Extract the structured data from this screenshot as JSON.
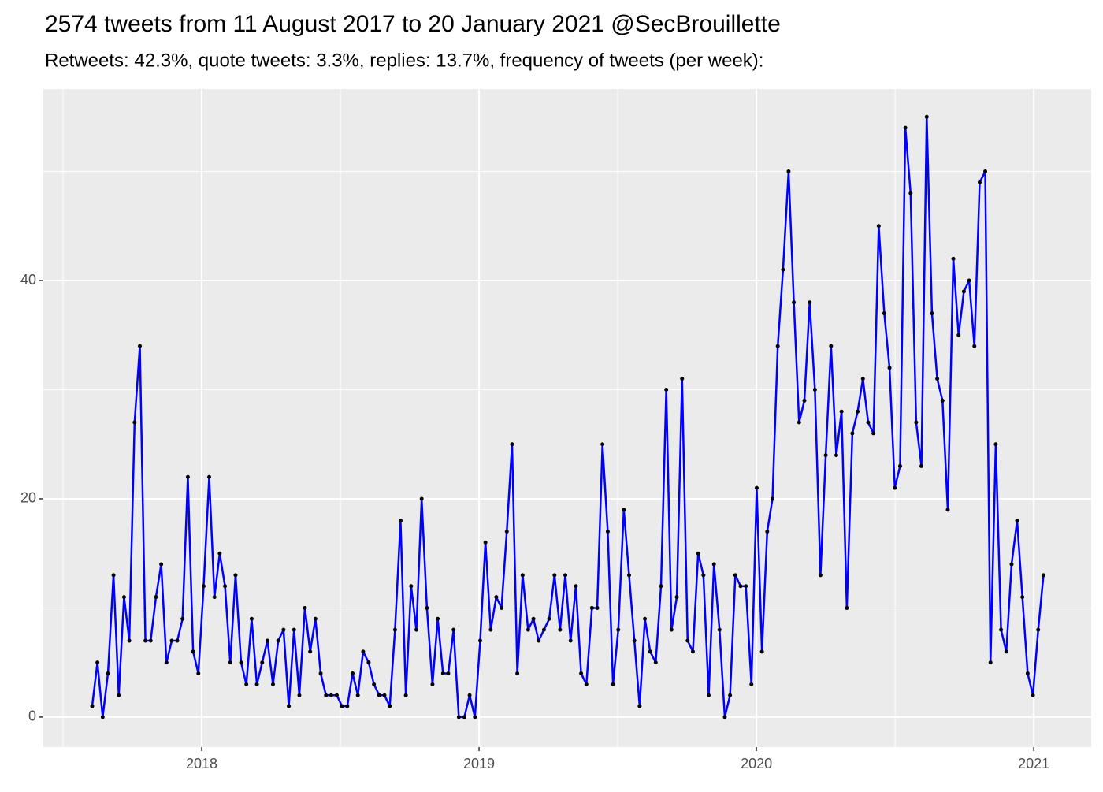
{
  "chart_data": {
    "type": "line",
    "title": "2574 tweets from 11 August 2017 to 20 January 2021 @SecBrouillette",
    "subtitle": "Retweets: 42.3%, quote tweets: 3.3%, replies: 13.7%, frequency of tweets (per week):",
    "x": [
      2017.605,
      2017.624,
      2017.643,
      2017.662,
      2017.682,
      2017.701,
      2017.72,
      2017.739,
      2017.758,
      2017.777,
      2017.797,
      2017.816,
      2017.835,
      2017.854,
      2017.873,
      2017.892,
      2017.912,
      2017.931,
      2017.95,
      2017.969,
      2017.988,
      2018.007,
      2018.027,
      2018.046,
      2018.065,
      2018.084,
      2018.103,
      2018.122,
      2018.142,
      2018.161,
      2018.18,
      2018.199,
      2018.218,
      2018.237,
      2018.257,
      2018.276,
      2018.295,
      2018.314,
      2018.333,
      2018.352,
      2018.372,
      2018.391,
      2018.41,
      2018.429,
      2018.448,
      2018.467,
      2018.487,
      2018.506,
      2018.525,
      2018.544,
      2018.563,
      2018.582,
      2018.602,
      2018.621,
      2018.64,
      2018.659,
      2018.678,
      2018.697,
      2018.717,
      2018.736,
      2018.755,
      2018.774,
      2018.793,
      2018.812,
      2018.832,
      2018.851,
      2018.87,
      2018.889,
      2018.908,
      2018.927,
      2018.947,
      2018.966,
      2018.985,
      2019.004,
      2019.023,
      2019.042,
      2019.062,
      2019.081,
      2019.1,
      2019.119,
      2019.138,
      2019.157,
      2019.177,
      2019.196,
      2019.215,
      2019.234,
      2019.253,
      2019.272,
      2019.292,
      2019.311,
      2019.33,
      2019.349,
      2019.368,
      2019.387,
      2019.407,
      2019.426,
      2019.445,
      2019.464,
      2019.483,
      2019.502,
      2019.522,
      2019.541,
      2019.56,
      2019.579,
      2019.598,
      2019.617,
      2019.637,
      2019.656,
      2019.675,
      2019.694,
      2019.713,
      2019.732,
      2019.752,
      2019.771,
      2019.79,
      2019.809,
      2019.828,
      2019.847,
      2019.867,
      2019.886,
      2019.905,
      2019.924,
      2019.943,
      2019.962,
      2019.982,
      2020.001,
      2020.02,
      2020.039,
      2020.058,
      2020.077,
      2020.096,
      2020.116,
      2020.135,
      2020.154,
      2020.173,
      2020.192,
      2020.211,
      2020.231,
      2020.25,
      2020.269,
      2020.288,
      2020.307,
      2020.326,
      2020.346,
      2020.365,
      2020.384,
      2020.403,
      2020.422,
      2020.441,
      2020.461,
      2020.48,
      2020.499,
      2020.518,
      2020.537,
      2020.556,
      2020.576,
      2020.595,
      2020.614,
      2020.633,
      2020.652,
      2020.671,
      2020.69,
      2020.71,
      2020.729,
      2020.748,
      2020.767,
      2020.786,
      2020.805,
      2020.825,
      2020.844,
      2020.863,
      2020.882,
      2020.901,
      2020.92,
      2020.94,
      2020.959,
      2020.978,
      2020.997,
      2021.016,
      2021.035
    ],
    "values": [
      1,
      5,
      0,
      4,
      13,
      2,
      11,
      7,
      27,
      34,
      7,
      7,
      11,
      14,
      5,
      7,
      7,
      9,
      22,
      6,
      4,
      12,
      22,
      11,
      15,
      12,
      5,
      13,
      5,
      3,
      9,
      3,
      5,
      7,
      3,
      7,
      8,
      1,
      8,
      2,
      10,
      6,
      9,
      4,
      2,
      2,
      2,
      1,
      1,
      4,
      2,
      6,
      5,
      3,
      2,
      2,
      1,
      8,
      18,
      2,
      12,
      8,
      20,
      10,
      3,
      9,
      4,
      4,
      8,
      0,
      0,
      2,
      0,
      7,
      16,
      8,
      11,
      10,
      17,
      25,
      4,
      13,
      8,
      9,
      7,
      8,
      9,
      13,
      8,
      13,
      7,
      12,
      4,
      3,
      10,
      10,
      25,
      17,
      3,
      8,
      19,
      13,
      7,
      1,
      9,
      6,
      5,
      12,
      30,
      8,
      11,
      31,
      7,
      6,
      15,
      13,
      2,
      14,
      8,
      0,
      2,
      13,
      12,
      12,
      3,
      21,
      6,
      17,
      20,
      34,
      41,
      50,
      38,
      27,
      29,
      38,
      30,
      13,
      24,
      34,
      24,
      28,
      10,
      26,
      28,
      31,
      27,
      26,
      45,
      37,
      32,
      21,
      23,
      54,
      48,
      27,
      23,
      55,
      37,
      31,
      29,
      19,
      42,
      35,
      39,
      40,
      34,
      49,
      50,
      5,
      25,
      8,
      6,
      14,
      18,
      11,
      4,
      2,
      8,
      13
    ],
    "color": "#0000ff",
    "point_color": "#000000",
    "xlim": [
      2017.429,
      2021.207
    ],
    "xticks": [
      2018,
      2019,
      2020,
      2021
    ],
    "ylim": [
      -2.75,
      57.55
    ],
    "yticks": [
      0,
      20,
      40
    ],
    "grid": true
  }
}
